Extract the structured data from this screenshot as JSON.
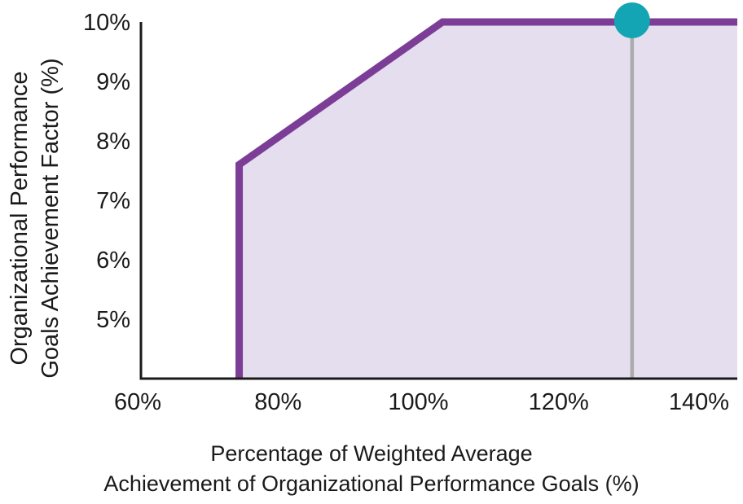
{
  "chart_data": {
    "type": "area",
    "title": "",
    "xlabel": "Percentage of Weighted Average Achievement of Organizational Performance Goals (%)",
    "xlabel_lines": [
      "Percentage of Weighted Average",
      "Achievement of Organizational Performance Goals (%)"
    ],
    "ylabel": "Organizational Performance Goals Achievement Factor (%)",
    "ylabel_lines": [
      "Organizational Performance",
      "Goals Achievement Factor (%)"
    ],
    "xlim": [
      60,
      145
    ],
    "ylim": [
      4,
      10
    ],
    "grid": false,
    "legend": "none",
    "x_ticks": [
      {
        "value": 60,
        "label": "60%"
      },
      {
        "value": 80,
        "label": "80%"
      },
      {
        "value": 100,
        "label": "100%"
      },
      {
        "value": 120,
        "label": "120%"
      },
      {
        "value": 140,
        "label": "140%"
      }
    ],
    "y_ticks": [
      {
        "value": 5,
        "label": "5%"
      },
      {
        "value": 6,
        "label": "6%"
      },
      {
        "value": 7,
        "label": "7%"
      },
      {
        "value": 8,
        "label": "8%"
      },
      {
        "value": 9,
        "label": "9%"
      },
      {
        "value": 10,
        "label": "10%"
      }
    ],
    "series": [
      {
        "name": "achievement-factor-payout-curve",
        "x": [
          74,
          74,
          103,
          145
        ],
        "y": [
          4,
          7.6,
          10,
          10
        ],
        "line_color": "#7c3d97",
        "fill_color": "#e4deef",
        "line_width": 9
      }
    ],
    "marker": {
      "name": "current-achievement-point",
      "x": 130,
      "y": 10,
      "radius": 22,
      "color": "#14a5b5"
    },
    "drop_line": {
      "x": 130,
      "from_y": 10,
      "to_y": 4,
      "color": "#ababab",
      "width": 4.5
    },
    "axis_color": "#1a1a1a",
    "tick_label_color": "#1a1a1a"
  }
}
